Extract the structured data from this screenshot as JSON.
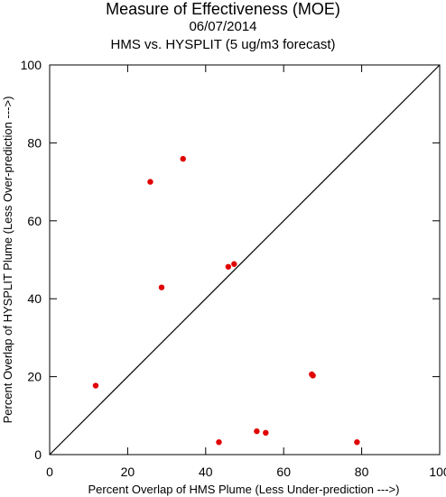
{
  "chart_data": {
    "type": "scatter",
    "title": "Measure of Effectiveness (MOE)",
    "subtitle_date": "06/07/2014",
    "subtitle_forecast": "HMS vs. HYSPLIT  (5 ug/m3 forecast)",
    "xlabel": "Percent Overlap of HMS Plume (Less Under-prediction --->)",
    "ylabel": "Percent Overlap of HYSPLIT Plume (Less Over-prediction --->)",
    "xlim": [
      0,
      100
    ],
    "ylim": [
      0,
      100
    ],
    "x_ticks": [
      "0",
      "20",
      "40",
      "60",
      "80",
      "100"
    ],
    "y_ticks": [
      "0",
      "20",
      "40",
      "60",
      "80",
      "100"
    ],
    "reference_line": "y = x",
    "grid": false,
    "point_color": "#e00000",
    "points": [
      {
        "x": 11.8,
        "y": 17.7
      },
      {
        "x": 25.8,
        "y": 70.0
      },
      {
        "x": 28.7,
        "y": 42.9
      },
      {
        "x": 34.2,
        "y": 75.9
      },
      {
        "x": 43.4,
        "y": 3.2
      },
      {
        "x": 45.8,
        "y": 48.2
      },
      {
        "x": 47.3,
        "y": 48.9
      },
      {
        "x": 53.1,
        "y": 6.0
      },
      {
        "x": 55.4,
        "y": 5.6
      },
      {
        "x": 67.2,
        "y": 20.6
      },
      {
        "x": 67.5,
        "y": 20.3
      },
      {
        "x": 78.8,
        "y": 3.2
      }
    ]
  }
}
